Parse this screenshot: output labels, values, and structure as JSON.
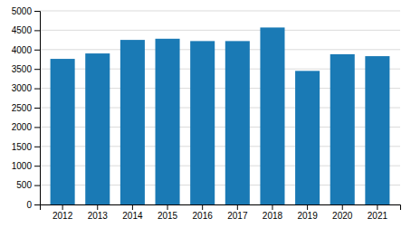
{
  "chart_data": {
    "type": "bar",
    "categories": [
      "2012",
      "2013",
      "2014",
      "2015",
      "2016",
      "2017",
      "2018",
      "2019",
      "2020",
      "2021"
    ],
    "values": [
      3760,
      3900,
      4250,
      4280,
      4220,
      4220,
      4570,
      3450,
      3880,
      3830
    ],
    "color": "#1a7ab5",
    "ylim": [
      0,
      5000
    ],
    "yticks": [
      0,
      500,
      1000,
      1500,
      2000,
      2500,
      3000,
      3500,
      4000,
      4500,
      5000
    ],
    "grid": true
  }
}
